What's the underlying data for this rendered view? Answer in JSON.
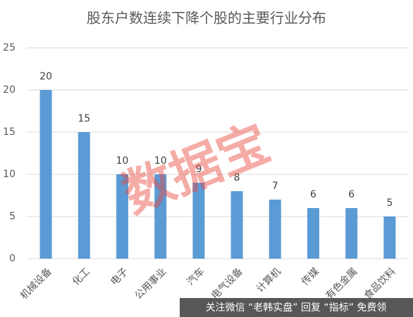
{
  "chart_data": {
    "type": "bar",
    "title": "股东户数连续下降个股的主要行业分布",
    "categories": [
      "机械设备",
      "化工",
      "电子",
      "公用事业",
      "汽车",
      "电气设备",
      "计算机",
      "传媒",
      "有色金属",
      "食品饮料"
    ],
    "values": [
      20,
      15,
      10,
      10,
      9,
      8,
      7,
      6,
      6,
      5
    ],
    "color": "#5b9bd5",
    "ylim": [
      0,
      25
    ],
    "yticks": [
      0,
      5,
      10,
      15,
      20,
      25
    ],
    "grid": true,
    "annotations": [
      "数据宝",
      "关注微信 “老韩实盘” 回复 “指标” 免费领"
    ]
  }
}
